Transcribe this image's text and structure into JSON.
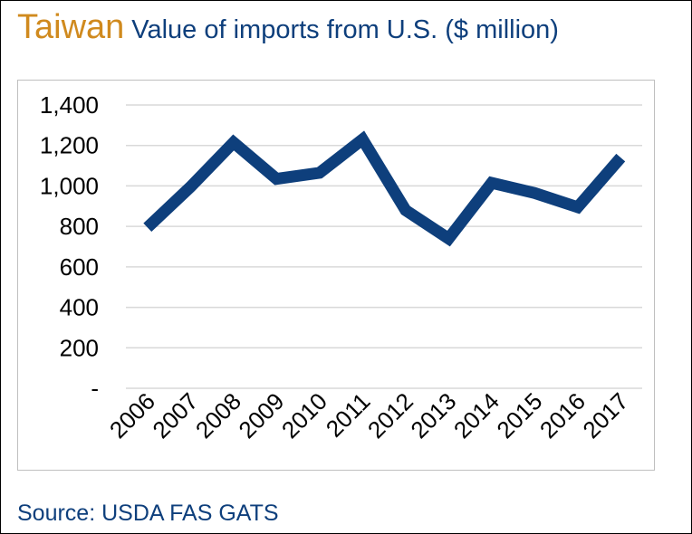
{
  "header": {
    "country": "Taiwan",
    "title": "Value of imports from U.S. ($ million)"
  },
  "source": "Source: USDA FAS GATS",
  "colors": {
    "country": "#D08A1E",
    "title": "#0E3F7C",
    "line": "#0E3F7C",
    "grid": "#D9D9D9",
    "text": "#000000"
  },
  "chart_data": {
    "type": "line",
    "title": "Value of imports from U.S. ($ million)",
    "xlabel": "",
    "ylabel": "",
    "categories": [
      "2006",
      "2007",
      "2008",
      "2009",
      "2010",
      "2011",
      "2012",
      "2013",
      "2014",
      "2015",
      "2016",
      "2017"
    ],
    "series": [
      {
        "values": [
          795,
          995,
          1215,
          1035,
          1065,
          1230,
          880,
          740,
          1015,
          965,
          895,
          1140
        ]
      }
    ],
    "ylim": [
      0,
      1400
    ],
    "yticks": [
      0,
      200,
      400,
      600,
      800,
      1000,
      1200,
      1400
    ],
    "ytick_labels": [
      "-",
      "200",
      "400",
      "600",
      "800",
      "1,000",
      "1,200",
      "1,400"
    ],
    "grid": true,
    "legend": "none"
  }
}
